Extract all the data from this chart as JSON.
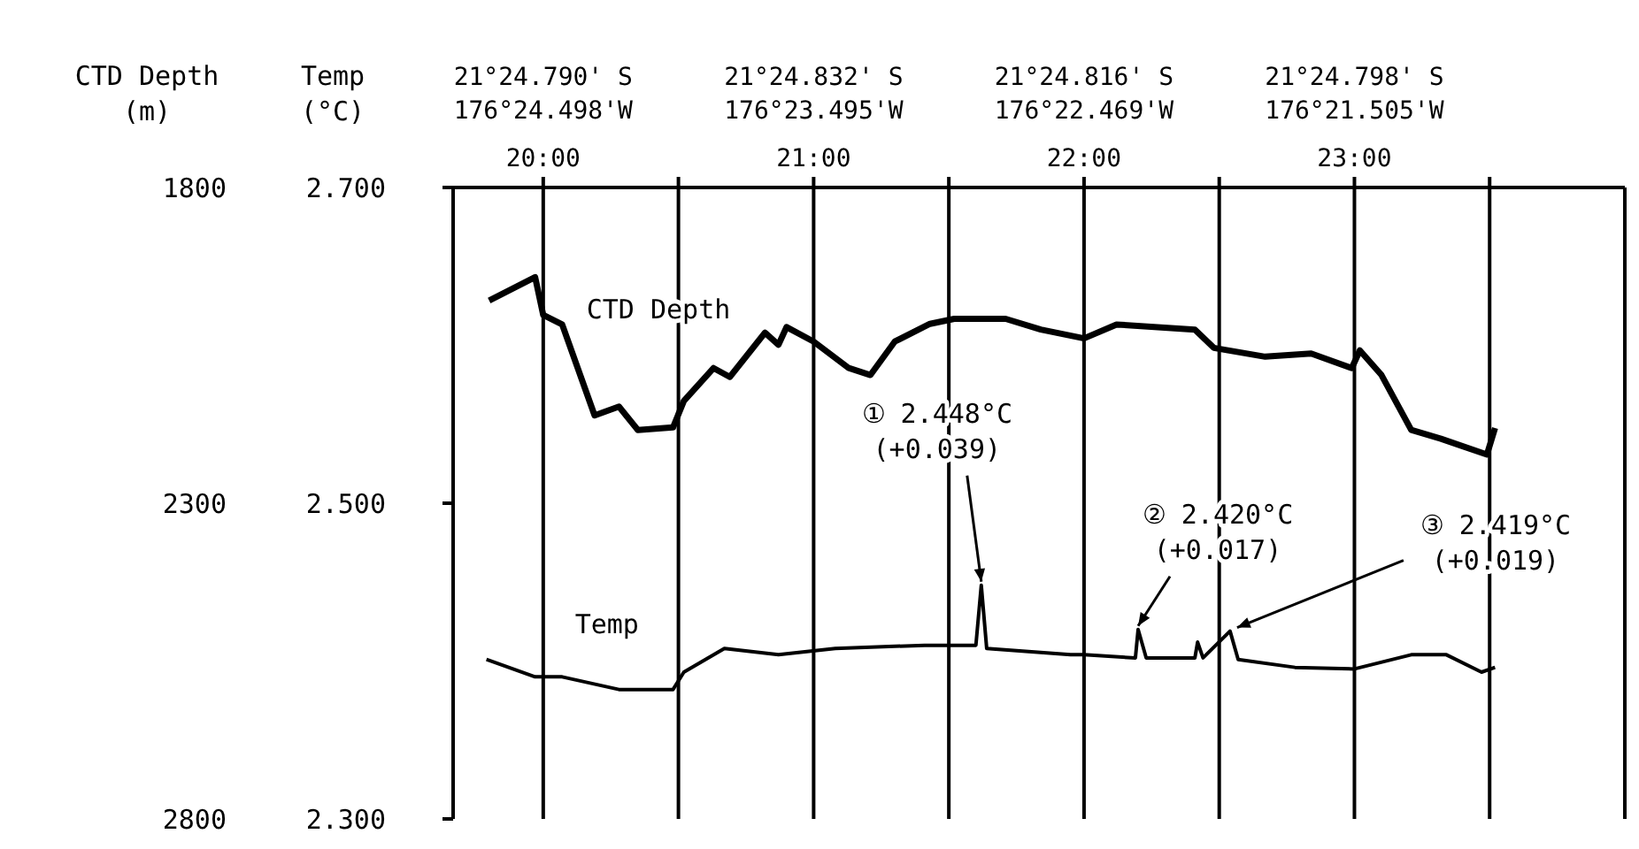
{
  "chart_data": {
    "type": "line",
    "ylabel": "Temp\n(°C)",
    "y2label": "CTD Depth\n(m)",
    "xlim": [
      19.6667,
      24
    ],
    "xticks": [
      {
        "value": 20,
        "label": "20:00"
      },
      {
        "value": 20.5,
        "label": null
      },
      {
        "value": 21,
        "label": "21:00"
      },
      {
        "value": 21.5,
        "label": null
      },
      {
        "value": 22,
        "label": "22:00"
      },
      {
        "value": 22.5,
        "label": null
      },
      {
        "value": 23,
        "label": "23:00"
      },
      {
        "value": 23.5,
        "label": null
      }
    ],
    "ylim": [
      2.3,
      2.7
    ],
    "yticks": [
      {
        "value": 2.3,
        "label": "2.300"
      },
      {
        "value": 2.5,
        "label": "2.500"
      },
      {
        "value": 2.7,
        "label": "2.700"
      }
    ],
    "y2lim": [
      2800,
      1800
    ],
    "y2ticks": [
      1800,
      2300,
      2800
    ],
    "grid": "x",
    "legend": false,
    "marker": "none",
    "line_style": "solid",
    "series": [
      {
        "name": "CTD Depth",
        "axis": "y2",
        "color": "#000000",
        "x": [
          19.8,
          19.97,
          20.0,
          20.07,
          20.19,
          20.28,
          20.35,
          20.48,
          20.52,
          20.63,
          20.69,
          20.82,
          20.87,
          20.9,
          21.0,
          21.13,
          21.21,
          21.3,
          21.43,
          21.52,
          21.71,
          21.84,
          22.0,
          22.12,
          22.41,
          22.48,
          22.67,
          22.84,
          22.99,
          23.02,
          23.1,
          23.21,
          23.32,
          23.49,
          23.52
        ],
        "values": [
          1979,
          1942,
          2002,
          2017,
          2161,
          2147,
          2184,
          2180,
          2138,
          2086,
          2100,
          2030,
          2049,
          2021,
          2044,
          2086,
          2097,
          2044,
          2016,
          2008,
          2008,
          2025,
          2039,
          2017,
          2025,
          2054,
          2068,
          2063,
          2086,
          2058,
          2097,
          2184,
          2198,
          2223,
          2181
        ]
      },
      {
        "name": "Temp",
        "color": "#000000",
        "x": [
          19.79,
          19.97,
          20.07,
          20.28,
          20.48,
          20.52,
          20.67,
          20.87,
          21.08,
          21.41,
          21.6,
          21.62,
          21.64,
          21.95,
          22.0,
          22.19,
          22.2,
          22.23,
          22.41,
          22.42,
          22.44,
          22.54,
          22.57,
          22.78,
          23.0,
          23.21,
          23.34,
          23.47,
          23.52
        ],
        "values": [
          2.401,
          2.39,
          2.39,
          2.382,
          2.382,
          2.393,
          2.408,
          2.404,
          2.408,
          2.41,
          2.41,
          2.448,
          2.408,
          2.404,
          2.404,
          2.402,
          2.42,
          2.402,
          2.402,
          2.412,
          2.402,
          2.419,
          2.401,
          2.396,
          2.395,
          2.404,
          2.404,
          2.393,
          2.396
        ]
      }
    ],
    "annotations": [
      {
        "text": "① 2.448°C\n(+0.039)",
        "x": 21.62,
        "y": 2.448
      },
      {
        "text": "② 2.420°C\n(+0.017)",
        "x": 22.2,
        "y": 2.42
      },
      {
        "text": "③ 2.419°C\n(+0.019)",
        "x": 22.54,
        "y": 2.419
      },
      "21°24.790' S\n176°24.498'W",
      "21°24.832' S\n176°23.495'W",
      "21°24.816' S\n176°22.469'W",
      "21°24.798' S\n176°21.505'W"
    ]
  }
}
